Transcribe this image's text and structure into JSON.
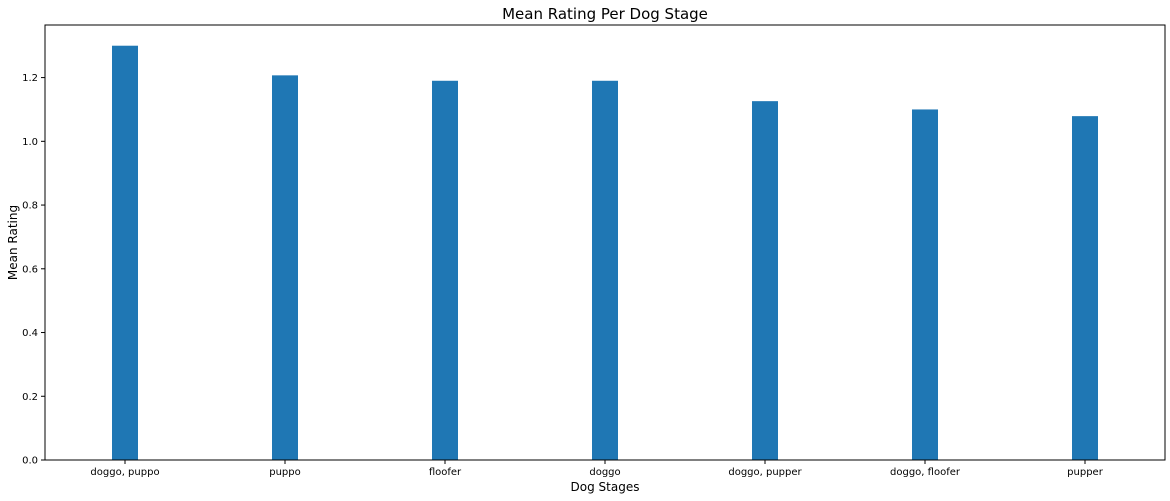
{
  "chart_data": {
    "type": "bar",
    "title": "Mean Rating Per Dog Stage",
    "xlabel": "Dog Stages",
    "ylabel": "Mean Rating",
    "categories": [
      "doggo, puppo",
      "puppo",
      "floofer",
      "doggo",
      "doggo, pupper",
      "doggo, floofer",
      "pupper"
    ],
    "values": [
      1.3,
      1.207,
      1.19,
      1.19,
      1.126,
      1.1,
      1.079
    ],
    "ylim": [
      0,
      1.365
    ],
    "yticks": [
      "0.0",
      "0.2",
      "0.4",
      "0.6",
      "0.8",
      "1.0",
      "1.2"
    ],
    "grid": false,
    "bar_color": "#1f77b4"
  }
}
